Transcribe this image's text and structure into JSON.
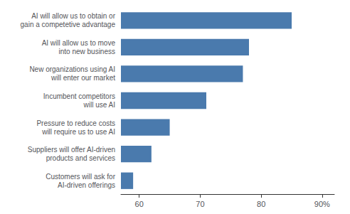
{
  "chart_data": {
    "type": "bar",
    "orientation": "horizontal",
    "categories": [
      "AI will allow us to obtain or\ngain a competetive advantage",
      "AI will allow us to move\ninto new business",
      "New organizations using AI\nwill enter our market",
      "Incumbent competitors\nwill use AI",
      "Pressure to reduce costs\nwill require us to use AI",
      "Suppliers will offer AI-driven\nproducts and services",
      "Customers will ask for\nAI-driven offerings"
    ],
    "values": [
      85,
      78,
      77,
      71,
      65,
      62,
      59
    ],
    "color": "#4a7aad",
    "xlim": [
      57,
      92
    ],
    "xticks": [
      60,
      70,
      80,
      {
        "value": 90,
        "label": "90%"
      }
    ],
    "grid": false
  }
}
